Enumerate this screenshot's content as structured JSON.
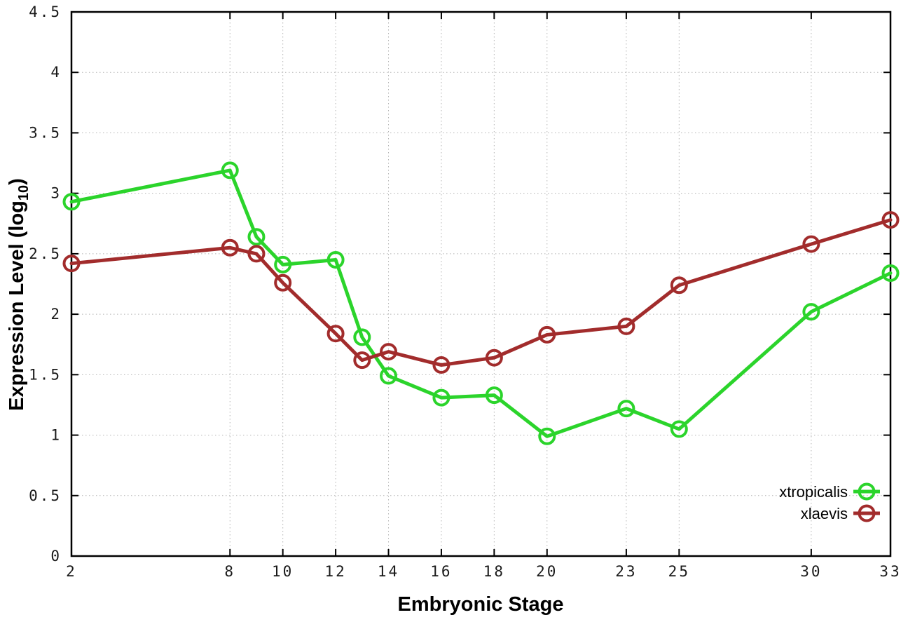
{
  "chart_data": {
    "type": "line",
    "title": "",
    "xlabel": "Embryonic Stage",
    "ylabel": "Expression Level (log10)",
    "ylabel_rich": {
      "pre": "Expression Level (log",
      "sub": "10",
      "post": ")"
    },
    "xlim": [
      2,
      33
    ],
    "ylim": [
      0,
      4.5
    ],
    "grid": true,
    "legend_position": "inside-bottom-right",
    "x": [
      2,
      8,
      9,
      10,
      12,
      13,
      14,
      16,
      18,
      20,
      23,
      25,
      30,
      33
    ],
    "xtick_values": [
      2,
      8,
      10,
      12,
      14,
      16,
      18,
      20,
      23,
      25,
      30,
      33
    ],
    "xtick_labels": [
      "2",
      "8",
      "10",
      "12",
      "14",
      "16",
      "18",
      "20",
      "23",
      "25",
      "30",
      "33"
    ],
    "ytick_values": [
      0,
      0.5,
      1,
      1.5,
      2,
      2.5,
      3,
      3.5,
      4,
      4.5
    ],
    "ytick_labels": [
      "0",
      "0.5",
      "1",
      "1.5",
      "2",
      "2.5",
      "3",
      "3.5",
      "4",
      "4.5"
    ],
    "series": [
      {
        "name": "xtropicalis",
        "color": "#2bd42b",
        "values": [
          2.93,
          3.19,
          2.64,
          2.41,
          2.45,
          1.81,
          1.49,
          1.31,
          1.33,
          0.99,
          1.22,
          1.05,
          2.02,
          2.34
        ]
      },
      {
        "name": "xlaevis",
        "color": "#a22c2c",
        "values": [
          2.42,
          2.55,
          2.5,
          2.26,
          1.84,
          1.62,
          1.69,
          1.58,
          1.64,
          1.83,
          1.9,
          2.24,
          2.58,
          2.78
        ]
      }
    ]
  },
  "colors": {
    "background": "#ffffff",
    "grid": "#b3b3b3",
    "axis": "#000000"
  }
}
